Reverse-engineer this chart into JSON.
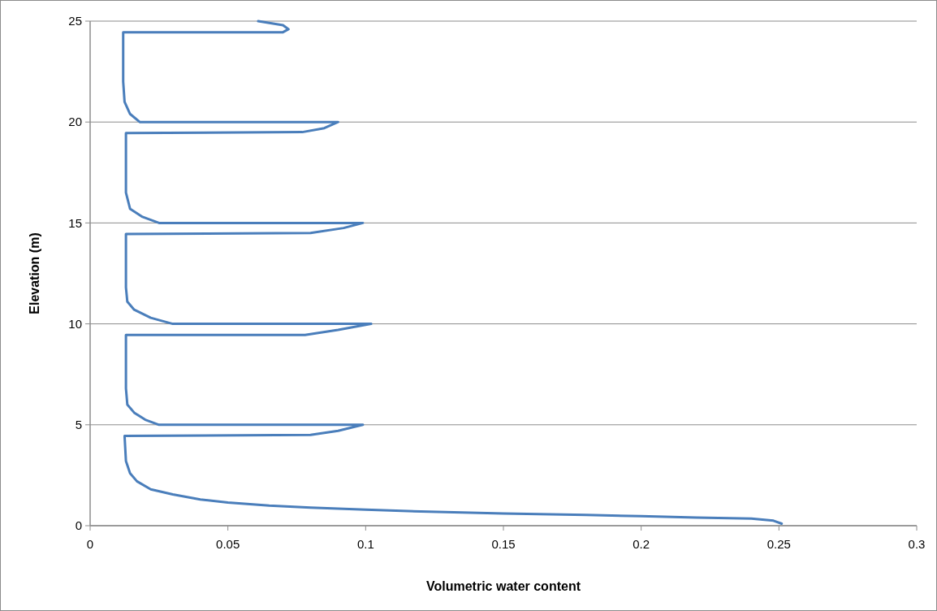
{
  "chart_data": {
    "type": "line",
    "xlabel": "Volumetric water content",
    "ylabel": "Elevation (m)",
    "xlim": [
      0,
      0.3
    ],
    "xticks": [
      0,
      0.05,
      0.1,
      0.15,
      0.2,
      0.25,
      0.3
    ],
    "ylim": [
      0,
      25
    ],
    "yticks": [
      0,
      5,
      10,
      15,
      20,
      25
    ],
    "grid": "y",
    "marker": "none",
    "line_style": "solid",
    "series": [
      {
        "color": "#4a7ebb",
        "x": [
          0.251,
          0.248,
          0.24,
          0.22,
          0.2,
          0.18,
          0.15,
          0.12,
          0.1,
          0.08,
          0.065,
          0.05,
          0.04,
          0.03,
          0.022,
          0.017,
          0.0145,
          0.013,
          0.0125,
          0.08,
          0.09,
          0.099,
          0.025,
          0.02,
          0.016,
          0.0135,
          0.013,
          0.013,
          0.078,
          0.09,
          0.102,
          0.03,
          0.022,
          0.016,
          0.0135,
          0.013,
          0.013,
          0.08,
          0.092,
          0.099,
          0.025,
          0.019,
          0.0145,
          0.013,
          0.013,
          0.077,
          0.085,
          0.09,
          0.018,
          0.0145,
          0.0125,
          0.012,
          0.012,
          0.07,
          0.072,
          0.07,
          0.061
        ],
        "values": [
          0.1,
          0.25,
          0.35,
          0.4,
          0.47,
          0.53,
          0.6,
          0.7,
          0.8,
          0.9,
          1.0,
          1.15,
          1.3,
          1.55,
          1.8,
          2.2,
          2.6,
          3.2,
          4.45,
          4.5,
          4.7,
          5.0,
          5.0,
          5.25,
          5.6,
          6.0,
          6.8,
          9.45,
          9.45,
          9.7,
          10.0,
          10.0,
          10.3,
          10.7,
          11.1,
          11.8,
          14.45,
          14.5,
          14.75,
          15.0,
          15.0,
          15.3,
          15.7,
          16.5,
          19.45,
          19.5,
          19.7,
          20.0,
          20.0,
          20.4,
          21.0,
          22.0,
          24.45,
          24.45,
          24.6,
          24.8,
          25.0
        ]
      }
    ]
  }
}
